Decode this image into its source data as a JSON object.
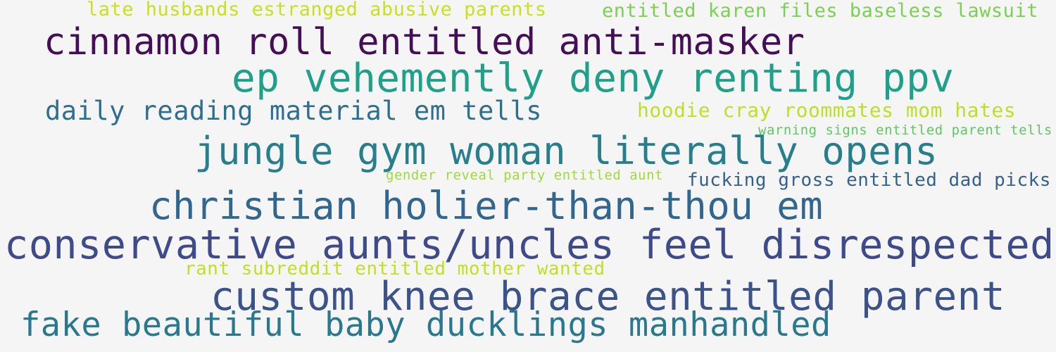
{
  "phrases": [
    {
      "text": "late husbands estranged abusive parents",
      "color": "#c8e020"
    },
    {
      "text": "entitled karen files baseless lawsuit",
      "color": "#7ad151"
    },
    {
      "text": "cinnamon roll entitled anti-masker",
      "color": "#440f57"
    },
    {
      "text": "ep vehemently deny renting ppv",
      "color": "#1fa088"
    },
    {
      "text": "daily reading material em tells",
      "color": "#2e6e8e"
    },
    {
      "text": "hoodie cray roommates mom hates",
      "color": "#bddf26"
    },
    {
      "text": "warning signs entitled parent tells",
      "color": "#5ec962"
    },
    {
      "text": "jungle gym woman literally opens",
      "color": "#277f8e"
    },
    {
      "text": "gender reveal party entitled aunt",
      "color": "#a0da39"
    },
    {
      "text": "fucking gross entitled dad picks",
      "color": "#34618d"
    },
    {
      "text": "christian holier-than-thou em",
      "color": "#31668e"
    },
    {
      "text": "conservative aunts/uncles feel disrespected",
      "color": "#3e4a89"
    },
    {
      "text": "rant subreddit entitled mother wanted",
      "color": "#c2df23"
    },
    {
      "text": "custom knee brace entitled parent",
      "color": "#3b528b"
    },
    {
      "text": "fake beautiful baby ducklings manhandled",
      "color": "#2a788e"
    }
  ]
}
